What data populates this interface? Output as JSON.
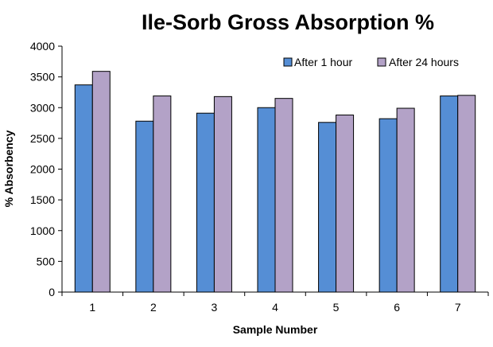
{
  "chart_data": {
    "type": "bar",
    "title": "Ile-Sorb Gross Absorption %",
    "xlabel": "Sample Number",
    "ylabel": "% Absorbency",
    "categories": [
      "1",
      "2",
      "3",
      "4",
      "5",
      "6",
      "7"
    ],
    "series": [
      {
        "name": "After 1 hour",
        "color": "#558ed5",
        "values": [
          3370,
          2780,
          2910,
          3000,
          2760,
          2820,
          3190
        ]
      },
      {
        "name": "After 24 hours",
        "color": "#b3a2c7",
        "values": [
          3590,
          3190,
          3180,
          3150,
          2880,
          2990,
          3200
        ]
      }
    ],
    "ylim": [
      0,
      4000
    ],
    "yticks": [
      0,
      500,
      1000,
      1500,
      2000,
      2500,
      3000,
      3500,
      4000
    ],
    "grid": false,
    "legend_position": "top-right"
  }
}
